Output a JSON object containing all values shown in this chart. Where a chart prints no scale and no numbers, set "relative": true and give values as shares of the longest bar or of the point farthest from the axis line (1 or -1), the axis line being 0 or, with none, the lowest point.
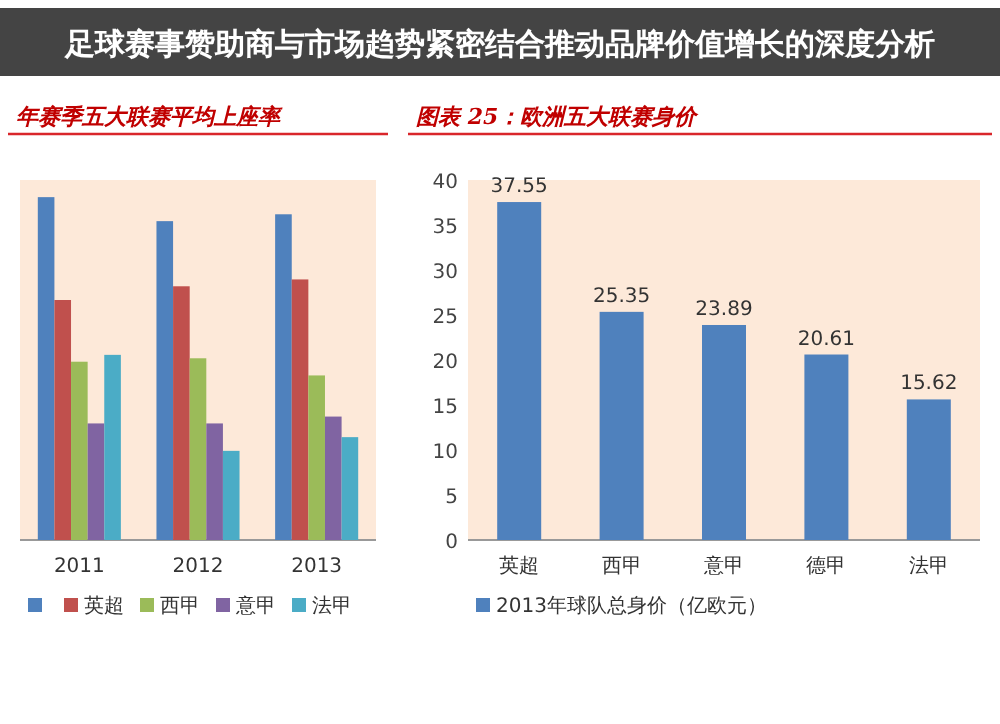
{
  "chart_data": [
    {
      "type": "bar",
      "title": "年赛季五大联赛平均上座率",
      "annotations": [
        "足球赛事赞助商与市场趋势紧密结合推动品牌价值增长的深度分析"
      ],
      "categories": [
        "2011",
        "2012",
        "2013"
      ],
      "relative": true,
      "legend": "bottom",
      "series": [
        {
          "color": "#4f81bd",
          "values": [
            1,
            0.93,
            0.95
          ]
        },
        {
          "name": "英超",
          "color": "#c0504d",
          "values": [
            0.7,
            0.74,
            0.76
          ]
        },
        {
          "name": "西甲",
          "color": "#9bbb59",
          "values": [
            0.52,
            0.53,
            0.48
          ]
        },
        {
          "name": "意甲",
          "color": "#8064a2",
          "values": [
            0.34,
            0.34,
            0.36
          ]
        },
        {
          "name": "法甲",
          "color": "#4bacc6",
          "values": [
            0.54,
            0.26,
            0.3
          ]
        }
      ]
    },
    {
      "type": "bar",
      "title": "图表 25：欧洲五大联赛身价",
      "categories": [
        "英超",
        "西甲",
        "意甲",
        "德甲",
        "法甲"
      ],
      "ylim": [
        0,
        40
      ],
      "yticks": [
        0,
        5,
        10,
        15,
        20,
        25,
        30,
        35,
        40
      ],
      "data_labels": true,
      "legend": "bottom",
      "series": [
        {
          "name": "2013年球队总身价（亿欧元）",
          "color": "#4f81bd",
          "values": [
            37.55,
            25.35,
            23.89,
            20.61,
            15.62
          ]
        }
      ]
    }
  ]
}
